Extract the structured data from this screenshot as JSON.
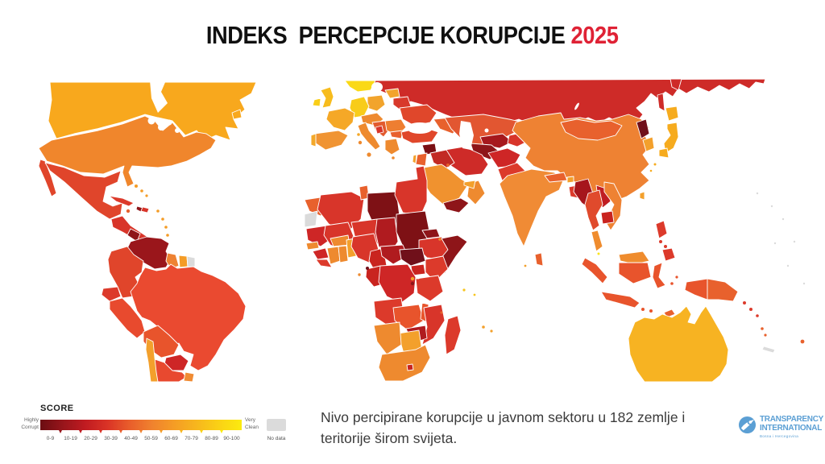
{
  "title": {
    "main": "INDEKS  PERCEPCIJE KORUPCIJE ",
    "year": "2025",
    "year_color": "#DF2235",
    "text_color": "#101010"
  },
  "caption": {
    "text": "Nivo percipirane korupcije u javnom sektoru u 182 zemlje i teritorije širom svijeta."
  },
  "logo": {
    "line1": "TRANSPARENCY",
    "line2": "INTERNATIONAL",
    "line3": "Bosna i Hercegovina",
    "color": "#5B9FD4"
  },
  "legend": {
    "title": "SCORE",
    "left_label": "Highly Corrupt",
    "right_label": "Very Clean",
    "no_data_label": "No data",
    "no_data_color": "#DBDBDB",
    "bins": [
      "0-9",
      "10-19",
      "20-29",
      "30-39",
      "40-49",
      "50-59",
      "60-69",
      "70-79",
      "80-89",
      "90-100"
    ],
    "colors": [
      "#6B0D12",
      "#97151B",
      "#C01B21",
      "#DA3326",
      "#E95E2B",
      "#F0822E",
      "#F59D25",
      "#F7B71D",
      "#FAD215",
      "#FBEB0F"
    ]
  },
  "chart_data": {
    "type": "heatmap",
    "subtype": "world-choropleth",
    "title": "INDEKS PERCEPCIJE KORUPCIJE 2025",
    "value_label": "SCORE",
    "value_range": [
      0,
      100
    ],
    "territories_count": 182,
    "legend_position": "bottom-left",
    "regions": {
      "canada": [
        "#F8A81D",
        "70-79"
      ],
      "usa": [
        "#F0862C",
        "60-69"
      ],
      "mexico": [
        "#E0452B",
        "30-39"
      ],
      "central_america": [
        "#D8352A",
        "30-39"
      ],
      "nicaragua": [
        "#8E1519",
        "10-19"
      ],
      "cuba": [
        "#DC3A2B",
        "40-49"
      ],
      "jamaica": [
        "#E8612D",
        "40-49"
      ],
      "haiti": [
        "#8E1519",
        "10-19"
      ],
      "dominican_republic": [
        "#D8352A",
        "30-39"
      ],
      "bahamas": [
        "#F49C26",
        "60-69"
      ],
      "lesser_antilles": [
        "#F49C26",
        "60-69"
      ],
      "venezuela": [
        "#9A161B",
        "10-19"
      ],
      "colombia": [
        "#E0452B",
        "30-39"
      ],
      "ecuador": [
        "#DC3A2B",
        "30-39"
      ],
      "guyana": [
        "#EE8233",
        "40-49"
      ],
      "suriname": [
        "#F49C26",
        "50-59"
      ],
      "french_guiana": [
        "#DBDBDB",
        "No data"
      ],
      "peru": [
        "#E84A2E",
        "30-39"
      ],
      "brazil": [
        "#EA4A30",
        "30-39"
      ],
      "bolivia": [
        "#E8542C",
        "20-29"
      ],
      "paraguay": [
        "#CE2626",
        "20-29"
      ],
      "chile": [
        "#F3A02C",
        "60-69"
      ],
      "argentina": [
        "#E8492F",
        "30-39"
      ],
      "uruguay": [
        "#F08B33",
        "60-69"
      ],
      "uk": [
        "#F7BC1D",
        "70-79"
      ],
      "ireland": [
        "#F9CE18",
        "70-79"
      ],
      "scandinavia": [
        "#FAD916",
        "80-89"
      ],
      "france": [
        "#F5A827",
        "60-69"
      ],
      "germany": [
        "#F8CC1A",
        "70-79"
      ],
      "spain": [
        "#F09433",
        "50-59"
      ],
      "portugal": [
        "#F3A82A",
        "60-69"
      ],
      "italy": [
        "#EE8A2F",
        "50-59"
      ],
      "poland": [
        "#F2A42C",
        "60-69"
      ],
      "central_europe": [
        "#EE8A2F",
        "50-59"
      ],
      "balkans": [
        "#E25A2E",
        "40-49"
      ],
      "bosnia": [
        "#D8352A",
        "30-39"
      ],
      "romania": [
        "#EE7E31",
        "40-49"
      ],
      "bulgaria": [
        "#E8612D",
        "40-49"
      ],
      "greece": [
        "#EE8A2F",
        "50-59"
      ],
      "ukraine": [
        "#E0472B",
        "30-39"
      ],
      "belarus": [
        "#D8392B",
        "30-39"
      ],
      "baltics": [
        "#F2A42C",
        "60-69"
      ],
      "russia": [
        "#CE2B28",
        "20-29"
      ],
      "turkey": [
        "#E0472B",
        "30-39"
      ],
      "caucasus": [
        "#E8612D",
        "40-49"
      ],
      "kazakhstan": [
        "#E25631",
        "30-39"
      ],
      "uzbekistan": [
        "#A6181D",
        "20-29"
      ],
      "turkmenistan": [
        "#8E1519",
        "10-19"
      ],
      "kyrgyz_tajik": [
        "#D8352A",
        "20-29"
      ],
      "afghanistan": [
        "#CE2626",
        "20-29"
      ],
      "iran": [
        "#CE2B28",
        "20-29"
      ],
      "iraq": [
        "#C22A24",
        "20-29"
      ],
      "syria": [
        "#7A0F14",
        "0-9"
      ],
      "jordan": [
        "#E8612D",
        "40-49"
      ],
      "israel": [
        "#F3A02C",
        "60-69"
      ],
      "saudi_arabia": [
        "#F0922F",
        "50-59"
      ],
      "yemen": [
        "#8E1519",
        "10-19"
      ],
      "oman": [
        "#EE8A2F",
        "50-59"
      ],
      "uae": [
        "#F3A02C",
        "60-69"
      ],
      "kuwait": [
        "#E8612D",
        "40-49"
      ],
      "egypt": [
        "#D8352A",
        "30-39"
      ],
      "pakistan": [
        "#DC3A2B",
        "20-29"
      ],
      "india": [
        "#F08B35",
        "40-49"
      ],
      "nepal": [
        "#E8612D",
        "30-39"
      ],
      "bhutan": [
        "#F3A02C",
        "60-69"
      ],
      "bangladesh": [
        "#DC3A2B",
        "20-29"
      ],
      "sri_lanka": [
        "#E8612D",
        "30-39"
      ],
      "myanmar": [
        "#A6161C",
        "10-19"
      ],
      "china": [
        "#EE8233",
        "40-49"
      ],
      "mongolia": [
        "#E8612D",
        "30-39"
      ],
      "north_korea": [
        "#70101A",
        "0-9"
      ],
      "south_korea": [
        "#F3A02C",
        "60-69"
      ],
      "japan": [
        "#F6AB1E",
        "70-79"
      ],
      "taiwan": [
        "#F3A02C",
        "60-69"
      ],
      "thailand": [
        "#E04A2C",
        "30-39"
      ],
      "laos": [
        "#C01D22",
        "20-29"
      ],
      "vietnam": [
        "#EE8233",
        "40-49"
      ],
      "cambodia": [
        "#C9241F",
        "20-29"
      ],
      "malaysia": [
        "#EF8C2E",
        "50-59"
      ],
      "singapore": [
        "#FBE51B",
        "80-89"
      ],
      "indonesia": [
        "#E8542C",
        "30-39"
      ],
      "philippines": [
        "#DC3A2B",
        "30-39"
      ],
      "papua_new_guinea": [
        "#E8612D",
        "30-39"
      ],
      "timor_leste": [
        "#E8612D",
        "40-49"
      ],
      "solomon_islands": [
        "#DC3A2B",
        "40-49"
      ],
      "vanuatu": [
        "#E8612D",
        "40-49"
      ],
      "fiji": [
        "#E8612D",
        "50-59"
      ],
      "new_caledonia": [
        "#DBDBDB",
        "No data"
      ],
      "pacific_islands": [
        "#DBDBDB",
        "No data"
      ],
      "australia": [
        "#F7B322",
        "70-79"
      ],
      "morocco": [
        "#E8612D",
        "30-39"
      ],
      "western_sahara": [
        "#DBDBDB",
        "No data"
      ],
      "algeria": [
        "#D8352A",
        "30-39"
      ],
      "tunisia": [
        "#E8612D",
        "40-49"
      ],
      "libya": [
        "#7E1115",
        "10-19"
      ],
      "mauritania": [
        "#CE2626",
        "20-29"
      ],
      "mali": [
        "#D8352A",
        "20-29"
      ],
      "niger": [
        "#D8352A",
        "30-39"
      ],
      "chad": [
        "#B01B1F",
        "20-29"
      ],
      "sudan": [
        "#7E1115",
        "10-19"
      ],
      "eritrea": [
        "#8E1519",
        "10-19"
      ],
      "djibouti": [
        "#EE8A2F",
        "40-49"
      ],
      "ethiopia": [
        "#D8352A",
        "30-39"
      ],
      "somalia": [
        "#8E1519",
        "0-9"
      ],
      "south_sudan": [
        "#70101A",
        "0-9"
      ],
      "senegal": [
        "#EE8A2F",
        "40-49"
      ],
      "guinea": [
        "#CE2626",
        "20-29"
      ],
      "sierra_leone_liberia": [
        "#DC3A2B",
        "30-39"
      ],
      "cote_divoire": [
        "#EE8A2F",
        "40-49"
      ],
      "ghana": [
        "#EE8A2F",
        "40-49"
      ],
      "burkina_faso": [
        "#EE8A2F",
        "40-49"
      ],
      "togo_benin": [
        "#F3A02C",
        "40-49"
      ],
      "nigeria": [
        "#D8352A",
        "20-29"
      ],
      "cameroon": [
        "#C9241F",
        "20-29"
      ],
      "central_african_republic": [
        "#B01B1F",
        "20-29"
      ],
      "equatorial_guinea": [
        "#70101A",
        "0-9"
      ],
      "congo_gabon": [
        "#C9241F",
        "20-29"
      ],
      "dr_congo": [
        "#CE2626",
        "20-29"
      ],
      "uganda": [
        "#C9241F",
        "20-29"
      ],
      "kenya": [
        "#DC3A2B",
        "30-39"
      ],
      "rwanda": [
        "#F3A02C",
        "50-59"
      ],
      "burundi": [
        "#8E1519",
        "10-19"
      ],
      "tanzania": [
        "#DC3A2B",
        "30-39"
      ],
      "angola": [
        "#DC3A2B",
        "30-39"
      ],
      "zambia": [
        "#E8542C",
        "30-39"
      ],
      "malawi": [
        "#E8542C",
        "30-39"
      ],
      "mozambique": [
        "#D8352A",
        "20-29"
      ],
      "zimbabwe": [
        "#B01B1F",
        "20-29"
      ],
      "botswana": [
        "#F3A02C",
        "50-59"
      ],
      "namibia": [
        "#EE8A2F",
        "40-49"
      ],
      "south_africa": [
        "#EE8A2F",
        "40-49"
      ],
      "lesotho": [
        "#C9241F",
        "30-39"
      ],
      "madagascar": [
        "#DC3A2B",
        "20-29"
      ],
      "mauritius": [
        "#F3A02C",
        "50-59"
      ],
      "seychelles": [
        "#F7C41D",
        "70-79"
      ],
      "comoros": [
        "#E8612D",
        "20-29"
      ],
      "sao_tome": [
        "#EE8A2F",
        "40-49"
      ],
      "maldives": [
        "#F3A02C",
        "50-59"
      ]
    }
  }
}
